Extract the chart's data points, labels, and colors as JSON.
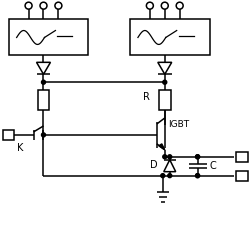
{
  "lw": 1.1,
  "fig_width": 2.51,
  "fig_height": 2.35,
  "dpi": 100,
  "label_K": "K",
  "label_R": "R",
  "label_D": "D",
  "label_C": "C",
  "label_IGBT": "IGBT"
}
